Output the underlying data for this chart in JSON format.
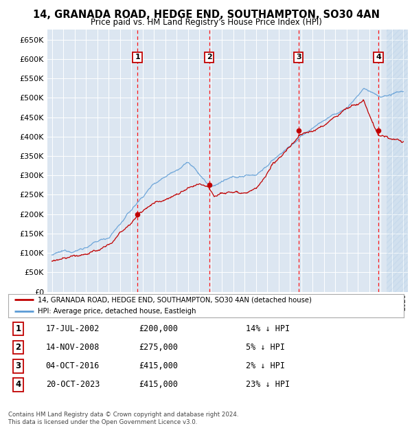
{
  "title": "14, GRANADA ROAD, HEDGE END, SOUTHAMPTON, SO30 4AN",
  "subtitle": "Price paid vs. HM Land Registry's House Price Index (HPI)",
  "ylim": [
    0,
    675000
  ],
  "yticks": [
    0,
    50000,
    100000,
    150000,
    200000,
    250000,
    300000,
    350000,
    400000,
    450000,
    500000,
    550000,
    600000,
    650000
  ],
  "bg_color": "#dce6f1",
  "sale_dates_num": [
    2002.54,
    2008.87,
    2016.75,
    2023.8
  ],
  "sale_prices": [
    200000,
    275000,
    415000,
    415000
  ],
  "sale_labels": [
    "1",
    "2",
    "3",
    "4"
  ],
  "legend_sale": "14, GRANADA ROAD, HEDGE END, SOUTHAMPTON, SO30 4AN (detached house)",
  "legend_hpi": "HPI: Average price, detached house, Eastleigh",
  "table_rows": [
    [
      "1",
      "17-JUL-2002",
      "£200,000",
      "14% ↓ HPI"
    ],
    [
      "2",
      "14-NOV-2008",
      "£275,000",
      "5% ↓ HPI"
    ],
    [
      "3",
      "04-OCT-2016",
      "£415,000",
      "2% ↓ HPI"
    ],
    [
      "4",
      "20-OCT-2023",
      "£415,000",
      "23% ↓ HPI"
    ]
  ],
  "footnote": "Contains HM Land Registry data © Crown copyright and database right 2024.\nThis data is licensed under the Open Government Licence v3.0.",
  "hpi_color": "#5b9bd5",
  "sale_color": "#c00000",
  "vline_color": "#ff0000",
  "hatch_color": "#c8d4e3",
  "xlim_left": 1994.6,
  "xlim_right": 2026.4,
  "hatch_start": 2024.5
}
